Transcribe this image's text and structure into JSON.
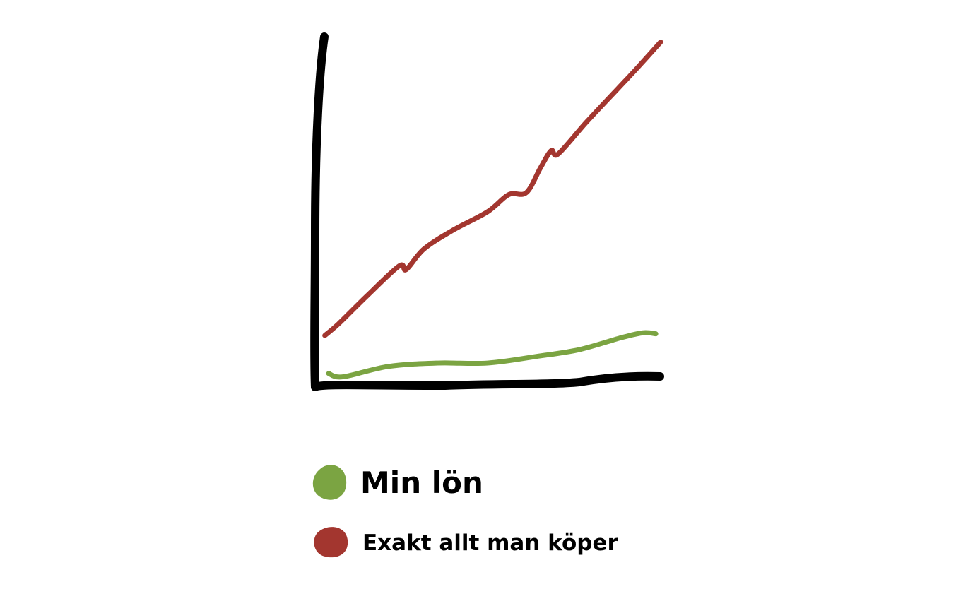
{
  "chart_data": {
    "type": "line",
    "title": "",
    "xlabel": "",
    "ylabel": "",
    "xlim": [
      0,
      100
    ],
    "ylim": [
      0,
      105
    ],
    "grid": false,
    "ticks": false,
    "style": "hand-drawn",
    "legend_placement": "bottom",
    "series": [
      {
        "name": "Exakt allt man köper",
        "color": "#a3362f",
        "x": [
          3,
          7,
          15,
          24.5,
          26.5,
          31.6,
          39.8,
          50,
          56.1,
          61.2,
          65.3,
          68.4,
          70.4,
          78.6,
          87.8,
          92.9,
          100
        ],
        "y": [
          14.7,
          18.2,
          26.3,
          35.4,
          34.3,
          40.4,
          45.9,
          51.5,
          56.6,
          57.2,
          64.6,
          69.7,
          68.7,
          78.2,
          88.3,
          93.9,
          102
        ]
      },
      {
        "name": "Min lön",
        "color": "#7ba442",
        "x": [
          4.1,
          8.2,
          21.4,
          35.7,
          50,
          64.3,
          76.5,
          88.8,
          94.9,
          98.6
        ],
        "y": [
          3.4,
          2.4,
          5.5,
          6.5,
          6.5,
          8.5,
          10.5,
          14.1,
          15.5,
          15.2
        ]
      }
    ],
    "legend": [
      {
        "label": "Min lön",
        "color": "#7ba442"
      },
      {
        "label": "Exakt allt man köper",
        "color": "#a3362f"
      }
    ],
    "axis_color": "#000000"
  }
}
